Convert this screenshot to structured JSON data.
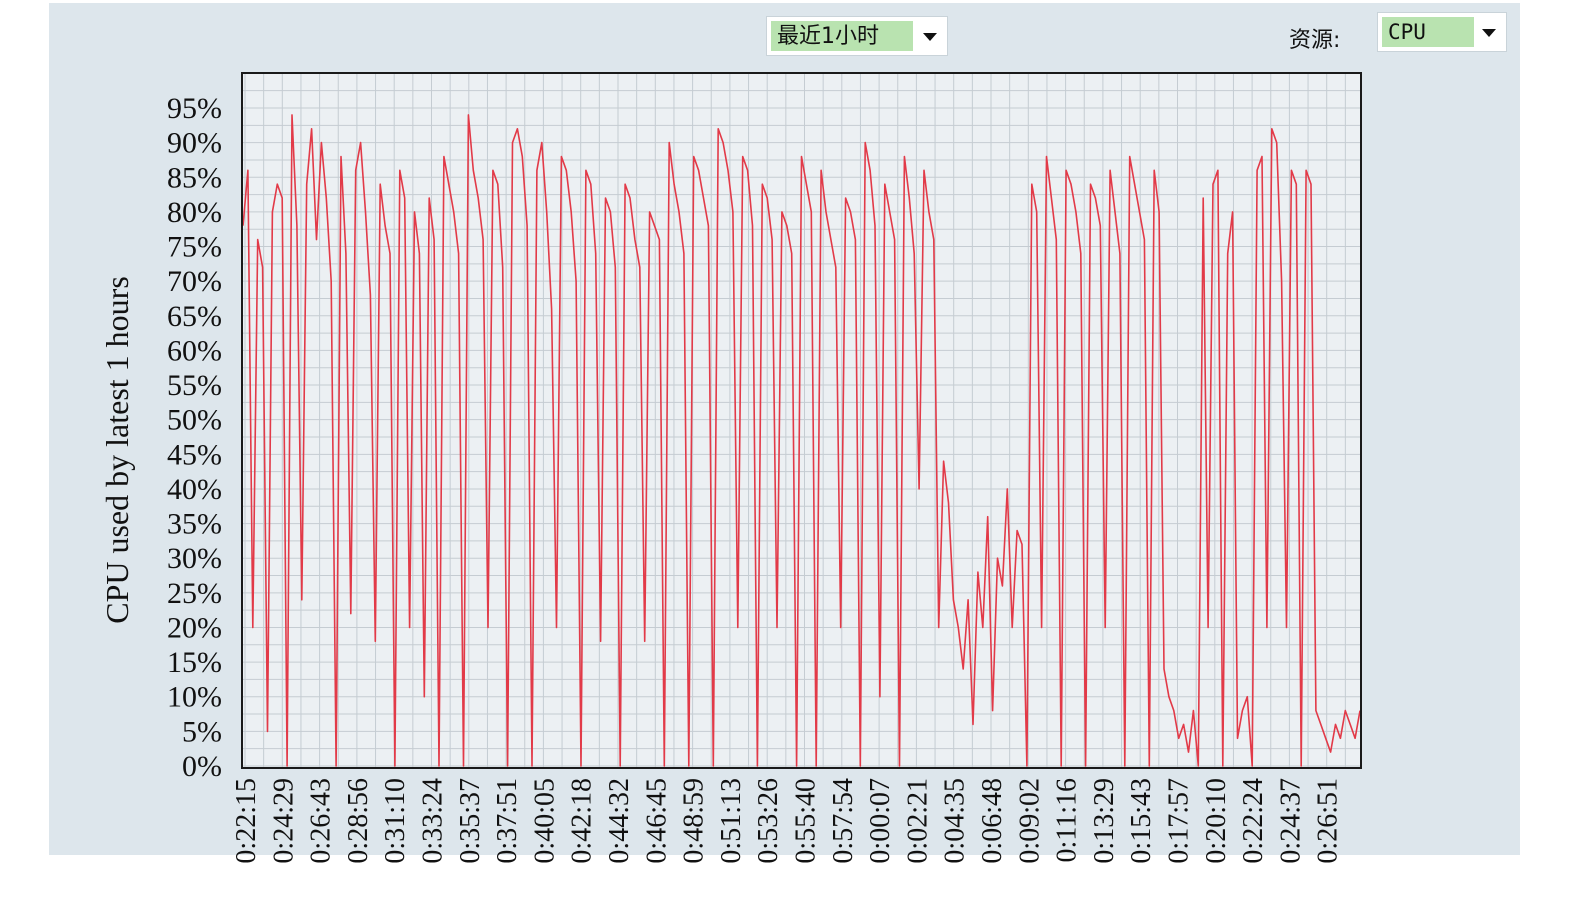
{
  "controls": {
    "time_range": "最近1小时",
    "resource_label": "资源:",
    "resource_value": "CPU"
  },
  "colors": {
    "panel_bg": "#dde6ec",
    "plot_bg": "#ecf0f3",
    "grid": "#c5ccd2",
    "series": "#e23a48",
    "dropdown_value_bg": "#b9e3b0"
  },
  "chart_data": {
    "type": "line",
    "ylabel": "CPU used by latest 1 hours",
    "yunit": "%",
    "ylim": [
      0,
      100
    ],
    "yticks": [
      0,
      5,
      10,
      15,
      20,
      25,
      30,
      35,
      40,
      45,
      50,
      55,
      60,
      65,
      70,
      75,
      80,
      85,
      90,
      95
    ],
    "ytick_labels": [
      "0%",
      "5%",
      "10%",
      "15%",
      "20%",
      "25%",
      "30%",
      "35%",
      "40%",
      "45%",
      "50%",
      "55%",
      "60%",
      "65%",
      "70%",
      "75%",
      "80%",
      "85%",
      "90%",
      "95%"
    ],
    "xtick_labels": [
      "0:22:15",
      "0:24:29",
      "0:26:43",
      "0:28:56",
      "0:31:10",
      "0:33:24",
      "0:35:37",
      "0:37:51",
      "0:40:05",
      "0:42:18",
      "0:44:32",
      "0:46:45",
      "0:48:59",
      "0:51:13",
      "0:53:26",
      "0:55:40",
      "0:57:54",
      "0:00:07",
      "0:02:21",
      "0:04:35",
      "0:06:48",
      "0:09:02",
      "0:11:16",
      "0:13:29",
      "0:15:43",
      "0:17:57",
      "0:20:10",
      "0:22:24",
      "0:24:37",
      "0:26:51"
    ],
    "grid": true,
    "legend": "none",
    "series": [
      {
        "values": [
          78,
          86,
          20,
          76,
          72,
          5,
          80,
          84,
          82,
          0,
          94,
          78,
          24,
          84,
          92,
          76,
          90,
          82,
          70,
          0,
          88,
          74,
          22,
          86,
          90,
          80,
          68,
          18,
          84,
          78,
          74,
          0,
          86,
          82,
          20,
          80,
          74,
          10,
          82,
          76,
          0,
          88,
          84,
          80,
          74,
          0,
          94,
          86,
          82,
          76,
          20,
          86,
          84,
          72,
          0,
          90,
          92,
          88,
          78,
          0,
          86,
          90,
          80,
          66,
          20,
          88,
          86,
          80,
          70,
          0,
          86,
          84,
          74,
          18,
          82,
          80,
          72,
          0,
          84,
          82,
          76,
          72,
          18,
          80,
          78,
          76,
          0,
          90,
          84,
          80,
          74,
          0,
          88,
          86,
          82,
          78,
          0,
          92,
          90,
          86,
          80,
          20,
          88,
          86,
          78,
          0,
          84,
          82,
          76,
          20,
          80,
          78,
          74,
          0,
          88,
          84,
          80,
          0,
          86,
          80,
          76,
          72,
          20,
          82,
          80,
          76,
          0,
          90,
          86,
          78,
          10,
          84,
          80,
          76,
          0,
          88,
          82,
          74,
          40,
          86,
          80,
          76,
          20,
          44,
          38,
          24,
          20,
          14,
          24,
          6,
          28,
          20,
          36,
          8,
          30,
          26,
          40,
          20,
          34,
          32,
          0,
          84,
          80,
          20,
          88,
          82,
          76,
          0,
          86,
          84,
          80,
          74,
          0,
          84,
          82,
          78,
          20,
          86,
          80,
          74,
          0,
          88,
          84,
          80,
          76,
          0,
          86,
          80,
          14,
          10,
          8,
          4,
          6,
          2,
          8,
          0,
          82,
          20,
          84,
          86,
          0,
          74,
          80,
          4,
          8,
          10,
          0,
          86,
          88,
          20,
          92,
          90,
          70,
          20,
          86,
          84,
          0,
          86,
          84,
          8,
          6,
          4,
          2,
          6,
          4,
          8,
          6,
          4,
          8
        ]
      }
    ]
  }
}
